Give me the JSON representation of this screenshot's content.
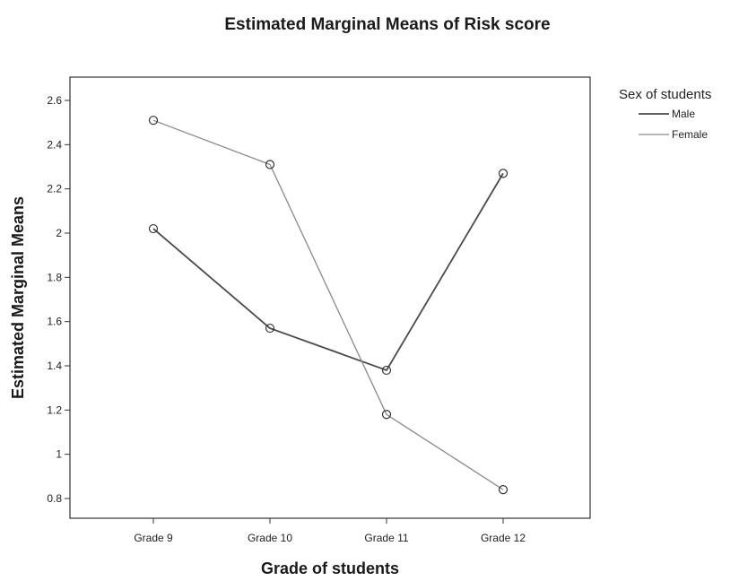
{
  "chart_data": {
    "type": "line",
    "title": "Estimated Marginal Means of Risk score",
    "xlabel": "Grade of students",
    "ylabel": "Estimated Marginal Means",
    "categories": [
      "Grade 9",
      "Grade 10",
      "Grade 11",
      "Grade 12"
    ],
    "ylim": [
      0.7,
      2.7
    ],
    "yticks": [
      0.8,
      1,
      1.2,
      1.4,
      1.6,
      1.8,
      2,
      2.2,
      2.4,
      2.6
    ],
    "ytick_labels": [
      "0.8",
      "1",
      "1.2",
      "1.4",
      "1.6",
      "1.8",
      "2",
      "2.2",
      "2.4",
      "2.6"
    ],
    "grid": false,
    "legend": {
      "title": "Sex of students",
      "placement": "top-right outside"
    },
    "series": [
      {
        "name": "Male",
        "values": [
          2.02,
          1.57,
          1.38,
          2.27
        ],
        "color": "#4a4a4a"
      },
      {
        "name": "Female",
        "values": [
          2.51,
          2.31,
          1.18,
          0.84
        ],
        "color": "#8a8a8a"
      }
    ]
  }
}
